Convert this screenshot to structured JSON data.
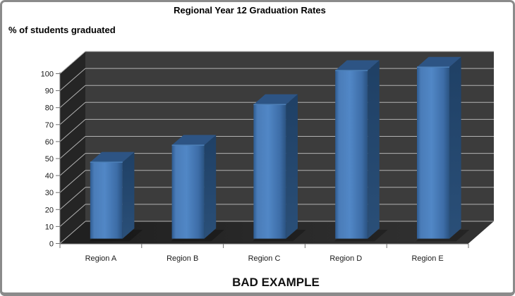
{
  "frame": {
    "border_color": "#8b8b8b",
    "background": "#ffffff"
  },
  "chart_data": {
    "type": "bar",
    "style": "3d-column-dark-walls",
    "title": "Regional Year 12 Graduation Rates",
    "ylabel": "% of students graduated",
    "xlabel": "",
    "caption": "BAD EXAMPLE",
    "categories": [
      "Region A",
      "Region B",
      "Region C",
      "Region D",
      "Region E"
    ],
    "values": [
      45,
      55,
      79,
      99,
      101
    ],
    "ylim": [
      0,
      100
    ],
    "yticks": [
      0,
      10,
      20,
      30,
      40,
      50,
      60,
      70,
      80,
      90,
      100
    ],
    "grid": true,
    "legend": "none",
    "colors": {
      "bar_front_stops": [
        "#2e5b90",
        "#4a7cb8",
        "#5187c6",
        "#3d6da7",
        "#2a5280"
      ],
      "bar_side_top": "#1f4065",
      "bar_side_bottom": "#2a4f78",
      "bar_top": "#2d5484",
      "bar_bevel": "#4d80b8",
      "wall_back": "#3c3c3c",
      "wall_side": "#252525",
      "floor_left": "#1f1f1f",
      "floor_right": "#333333",
      "gridline": "#b2b2b2",
      "axis_line": "#6f6f6f",
      "tick_text": "#1a1a1a",
      "shadow": "rgba(0,0,0,0.25)"
    }
  }
}
